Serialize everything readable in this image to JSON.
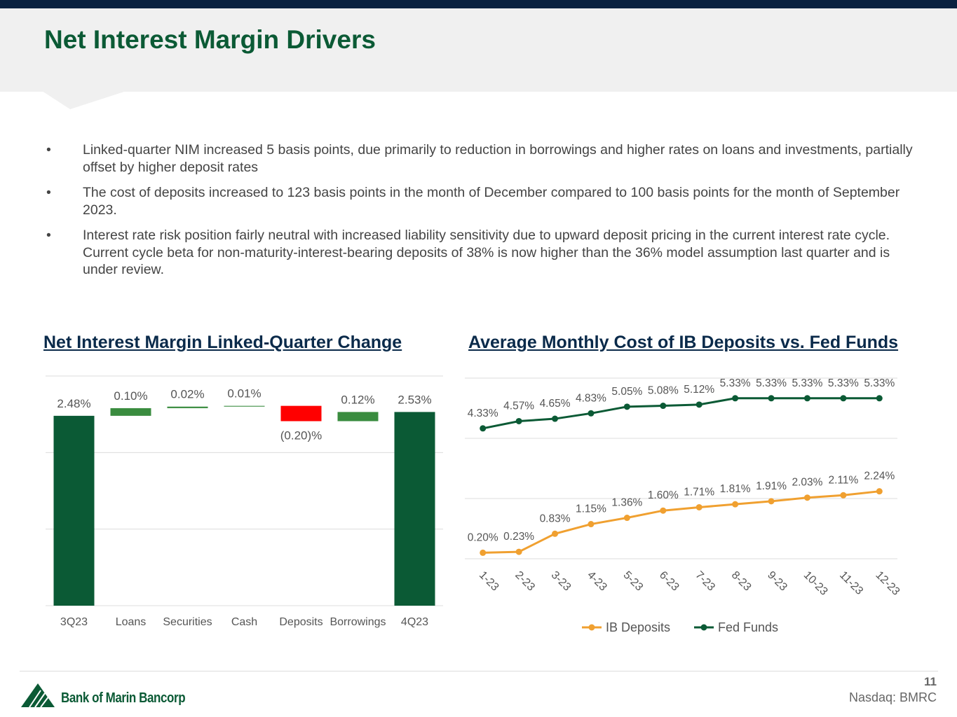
{
  "header": {
    "title": "Net Interest Margin Drivers"
  },
  "bullets": [
    "Linked-quarter NIM increased 5 basis points, due primarily to reduction in borrowings and higher rates on loans and investments, partially offset by higher deposit rates",
    "The cost of deposits increased to 123 basis points in the month of December compared to 100 basis points for the month of September 2023.",
    "Interest rate risk position fairly neutral with increased liability sensitivity due to upward deposit pricing in the current interest rate cycle. Current cycle beta for non-maturity-interest-bearing deposits of 38% is now higher than the 36% model assumption last quarter and is under review."
  ],
  "chart_data": [
    {
      "type": "waterfall",
      "title": "Net Interest Margin Linked-Quarter Change",
      "categories": [
        "3Q23",
        "Loans",
        "Securities",
        "Cash",
        "Deposits",
        "Borrowings",
        "4Q23"
      ],
      "values": [
        2.48,
        0.1,
        0.02,
        0.01,
        -0.2,
        0.12,
        2.53
      ],
      "value_labels": [
        "2.48%",
        "0.10%",
        "0.02%",
        "0.01%",
        "(0.20)%",
        "0.12%",
        "2.53%"
      ],
      "totals": [
        true,
        false,
        false,
        false,
        false,
        false,
        true
      ],
      "total_color": "#0b5a35",
      "increase_color": "#3a8c3f",
      "decrease_color": "#ff0000",
      "ylim": [
        0,
        3
      ],
      "yticks": [
        0,
        1,
        2,
        3
      ],
      "show_tick_labels": false,
      "grid": true
    },
    {
      "type": "line",
      "title": "Average Monthly Cost of IB Deposits vs. Fed Funds",
      "categories": [
        "1-23",
        "2-23",
        "3-23",
        "4-23",
        "5-23",
        "6-23",
        "7-23",
        "8-23",
        "9-23",
        "10-23",
        "11-23",
        "12-23"
      ],
      "series": [
        {
          "name": "IB Deposits",
          "color": "#f0a030",
          "values": [
            0.2,
            0.23,
            0.83,
            1.15,
            1.36,
            1.6,
            1.71,
            1.81,
            1.91,
            2.03,
            2.11,
            2.24
          ],
          "value_labels": [
            "0.20%",
            "0.23%",
            "0.83%",
            "1.15%",
            "1.36%",
            "1.60%",
            "1.71%",
            "1.81%",
            "1.91%",
            "2.03%",
            "2.11%",
            "2.24%"
          ]
        },
        {
          "name": "Fed Funds",
          "color": "#0b5a35",
          "values": [
            4.33,
            4.57,
            4.65,
            4.83,
            5.05,
            5.08,
            5.12,
            5.33,
            5.33,
            5.33,
            5.33,
            5.33
          ],
          "value_labels": [
            "4.33%",
            "4.57%",
            "4.65%",
            "4.83%",
            "5.05%",
            "5.08%",
            "5.12%",
            "5.33%",
            "5.33%",
            "5.33%",
            "5.33%",
            "5.33%"
          ]
        }
      ],
      "ylim": [
        0,
        6
      ],
      "yticks": [
        0,
        2,
        4,
        6
      ],
      "show_tick_labels": false,
      "grid": true,
      "legend": "bottom"
    }
  ],
  "footer": {
    "page": "11",
    "logo": "Bank of Marin Bancorp",
    "ticker": "Nasdaq: BMRC"
  }
}
